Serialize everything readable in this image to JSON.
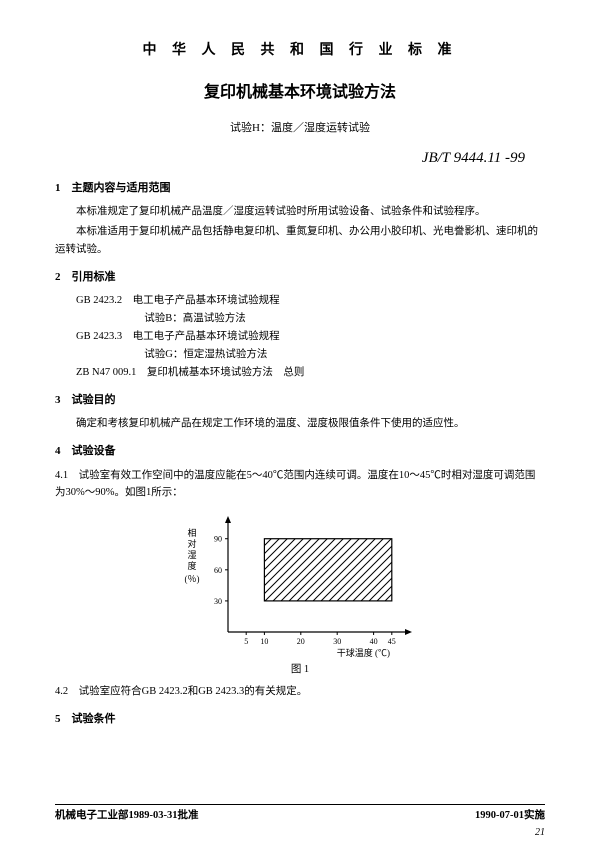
{
  "header": "中 华 人 民 共 和 国 行 业 标 准",
  "title": "复印机械基本环境试验方法",
  "subtitle": "试验H：温度／湿度运转试验",
  "doc_code": "JB/T 9444.11 -99",
  "s1": {
    "heading": "1　主题内容与适用范围",
    "p1": "本标准规定了复印机械产品温度／湿度运转试验时所用试验设备、试验条件和试验程序。",
    "p2": "本标准适用于复印机械产品包括静电复印机、重氮复印机、办公用小胶印机、光电誊影机、速印机的运转试验。"
  },
  "s2": {
    "heading": "2　引用标准",
    "r1a": "GB 2423.2　电工电子产品基本环境试验规程",
    "r1b": "试验B：高温试验方法",
    "r2a": "GB 2423.3　电工电子产品基本环境试验规程",
    "r2b": "试验G：恒定湿热试验方法",
    "r3": "ZB N47 009.1　复印机械基本环境试验方法　总则"
  },
  "s3": {
    "heading": "3　试验目的",
    "p1": "确定和考核复印机械产品在规定工作环境的温度、湿度极限值条件下使用的适应性。"
  },
  "s4": {
    "heading": "4　试验设备",
    "p1": "4.1　试验室有效工作空间中的温度应能在5～40℃范围内连续可调。温度在10～45℃时相对湿度可调范围为30%～90%。如图1所示：",
    "p2": "4.2　试验室应符合GB 2423.2和GB 2423.3的有关规定。"
  },
  "chart": {
    "type": "region-plot",
    "ylabel": "相对湿度",
    "ylabel_unit": "(％)",
    "xlabel": "干球温度 (℃)",
    "caption": "图 1",
    "xlim": [
      0,
      50
    ],
    "ylim": [
      0,
      110
    ],
    "xticks": [
      5,
      10,
      20,
      30,
      40,
      45
    ],
    "yticks": [
      30,
      60,
      90
    ],
    "region": {
      "xmin": 10,
      "xmax": 45,
      "ymin": 30,
      "ymax": 90
    },
    "axis_color": "#000000",
    "hatch_color": "#000000",
    "bg": "#ffffff",
    "line_width": 1.2,
    "tick_fontsize": 8,
    "label_fontsize": 9
  },
  "s5": {
    "heading": "5　试验条件"
  },
  "footer": {
    "left": "机械电子工业部1989-03-31批准",
    "right": "1990-07-01实施"
  },
  "page_num": "21"
}
